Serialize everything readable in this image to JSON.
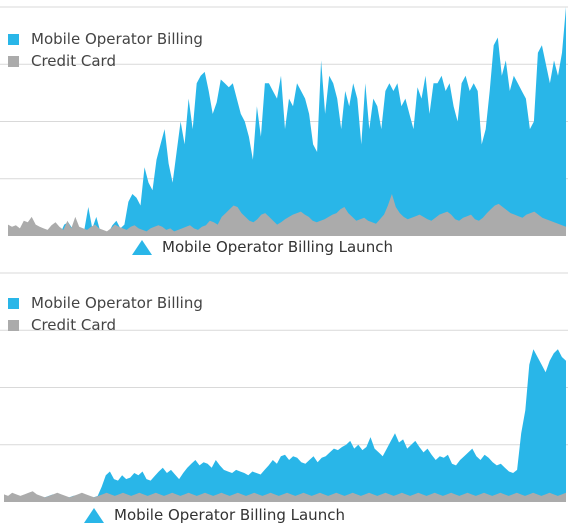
{
  "colors": {
    "mobile": "#29b6e8",
    "credit": "#ababab",
    "grid": "#d9d9d9",
    "annotation": "#29b6e8"
  },
  "chart_data": [
    {
      "type": "area",
      "title": "",
      "legend": [
        "Mobile Operator Billing",
        "Credit Card"
      ],
      "legend_position": "top-left",
      "annotation": {
        "label": "Mobile Operator Billing Launch",
        "marker": "triangle-up",
        "x_index": 30
      },
      "grid": true,
      "ylim": [
        0,
        300
      ],
      "gridlines": [
        75,
        150,
        225,
        300
      ],
      "series": [
        {
          "name": "Mobile Operator Billing",
          "values": [
            8,
            5,
            4,
            3,
            4,
            2,
            3,
            5,
            2,
            2,
            3,
            4,
            6,
            3,
            15,
            18,
            10,
            8,
            6,
            8,
            38,
            10,
            25,
            6,
            5,
            4,
            14,
            20,
            10,
            15,
            45,
            55,
            50,
            40,
            90,
            70,
            60,
            100,
            120,
            140,
            95,
            70,
            110,
            150,
            120,
            180,
            140,
            200,
            210,
            215,
            190,
            160,
            175,
            205,
            200,
            195,
            200,
            180,
            160,
            150,
            130,
            100,
            170,
            130,
            200,
            200,
            190,
            180,
            210,
            140,
            180,
            170,
            200,
            190,
            180,
            160,
            120,
            110,
            230,
            160,
            210,
            200,
            180,
            140,
            190,
            170,
            200,
            180,
            120,
            200,
            140,
            180,
            170,
            140,
            190,
            200,
            190,
            200,
            170,
            180,
            160,
            140,
            195,
            180,
            210,
            160,
            200,
            200,
            210,
            190,
            200,
            170,
            150,
            200,
            210,
            190,
            200,
            190,
            120,
            140,
            190,
            250,
            260,
            210,
            230,
            190,
            210,
            200,
            190,
            180,
            140,
            150,
            240,
            250,
            225,
            200,
            230,
            210,
            240,
            300
          ]
        },
        {
          "name": "Credit Card",
          "values": [
            15,
            12,
            14,
            10,
            20,
            18,
            25,
            15,
            12,
            10,
            8,
            14,
            18,
            12,
            8,
            20,
            10,
            25,
            12,
            10,
            8,
            12,
            15,
            10,
            8,
            6,
            10,
            15,
            12,
            10,
            8,
            12,
            14,
            10,
            8,
            6,
            10,
            12,
            14,
            12,
            8,
            10,
            6,
            8,
            10,
            12,
            14,
            10,
            8,
            12,
            14,
            20,
            18,
            15,
            25,
            30,
            35,
            40,
            38,
            30,
            25,
            20,
            18,
            22,
            28,
            30,
            25,
            20,
            15,
            18,
            22,
            25,
            28,
            30,
            32,
            28,
            25,
            20,
            18,
            20,
            22,
            25,
            28,
            30,
            35,
            38,
            30,
            25,
            20,
            22,
            24,
            20,
            18,
            16,
            22,
            28,
            40,
            55,
            38,
            30,
            25,
            22,
            24,
            26,
            28,
            25,
            22,
            20,
            24,
            28,
            30,
            32,
            28,
            22,
            20,
            24,
            26,
            28,
            22,
            20,
            24,
            30,
            35,
            40,
            42,
            38,
            34,
            30,
            28,
            26,
            24,
            28,
            30,
            32,
            28,
            24,
            22,
            20,
            18,
            16,
            14,
            12
          ]
        }
      ]
    },
    {
      "type": "area",
      "title": "",
      "legend": [
        "Mobile Operator Billing",
        "Credit Card"
      ],
      "legend_position": "top-left",
      "annotation": {
        "label": "Mobile Operator Billing Launch",
        "marker": "triangle-up",
        "x_index": 22
      },
      "grid": true,
      "ylim": [
        0,
        300
      ],
      "gridlines": [
        75,
        150,
        225,
        300
      ],
      "series": [
        {
          "name": "Mobile Operator Billing",
          "values": [
            8,
            6,
            8,
            7,
            6,
            8,
            10,
            9,
            8,
            7,
            6,
            8,
            10,
            9,
            8,
            7,
            6,
            8,
            9,
            10,
            8,
            7,
            6,
            8,
            20,
            35,
            40,
            30,
            28,
            35,
            30,
            32,
            38,
            35,
            40,
            30,
            28,
            34,
            40,
            45,
            38,
            42,
            36,
            30,
            38,
            45,
            50,
            55,
            48,
            52,
            50,
            45,
            55,
            48,
            42,
            40,
            38,
            42,
            40,
            38,
            35,
            40,
            38,
            36,
            42,
            48,
            55,
            50,
            60,
            62,
            55,
            60,
            58,
            52,
            50,
            55,
            60,
            52,
            58,
            60,
            65,
            70,
            68,
            72,
            75,
            80,
            70,
            75,
            68,
            72,
            85,
            70,
            65,
            60,
            70,
            80,
            90,
            78,
            82,
            70,
            75,
            80,
            72,
            65,
            70,
            62,
            55,
            60,
            58,
            62,
            50,
            48,
            55,
            60,
            65,
            70,
            60,
            55,
            62,
            58,
            52,
            48,
            50,
            45,
            40,
            38,
            42,
            90,
            120,
            180,
            200,
            190,
            180,
            170,
            185,
            195,
            200,
            190,
            185
          ]
        },
        {
          "name": "Credit Card",
          "values": [
            10,
            8,
            12,
            10,
            8,
            10,
            12,
            14,
            10,
            8,
            6,
            8,
            10,
            12,
            10,
            8,
            6,
            8,
            10,
            12,
            10,
            8,
            6,
            8,
            10,
            12,
            10,
            8,
            10,
            12,
            10,
            8,
            10,
            12,
            10,
            8,
            10,
            12,
            10,
            8,
            10,
            12,
            10,
            8,
            10,
            12,
            10,
            8,
            10,
            12,
            10,
            8,
            10,
            12,
            10,
            8,
            10,
            12,
            10,
            8,
            10,
            12,
            10,
            8,
            10,
            12,
            10,
            8,
            10,
            12,
            10,
            8,
            10,
            12,
            10,
            8,
            10,
            12,
            10,
            8,
            10,
            12,
            10,
            8,
            10,
            12,
            10,
            8,
            10,
            12,
            10,
            8,
            10,
            12,
            10,
            8,
            10,
            12,
            10,
            8,
            10,
            12,
            10,
            8,
            10,
            12,
            10,
            8,
            10,
            12,
            10,
            8,
            10,
            12,
            10,
            8,
            10,
            12,
            10,
            8,
            10,
            12,
            10,
            8,
            10,
            12,
            10,
            8,
            10,
            12,
            10,
            8,
            10,
            12,
            10,
            8,
            10,
            12
          ]
        }
      ]
    }
  ]
}
